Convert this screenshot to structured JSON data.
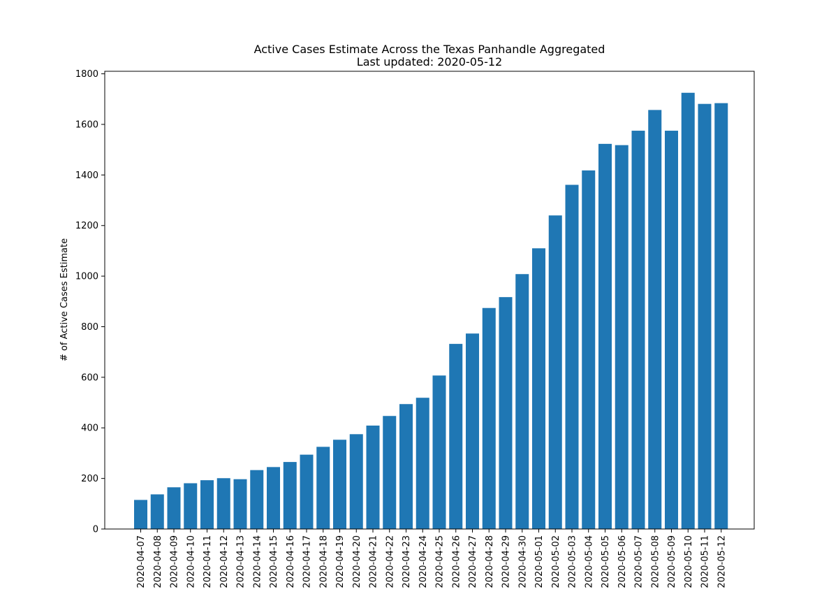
{
  "chart_data": {
    "type": "bar",
    "title": "Active Cases Estimate Across the Texas Panhandle Aggregated",
    "subtitle": "Last updated: 2020-05-12",
    "xlabel": "",
    "ylabel": "# of Active Cases Estimate",
    "ylim": [
      0,
      1810
    ],
    "yticks": [
      0,
      200,
      400,
      600,
      800,
      1000,
      1200,
      1400,
      1600,
      1800
    ],
    "grid": false,
    "bar_color": "#1f77b4",
    "categories": [
      "2020-04-07",
      "2020-04-08",
      "2020-04-09",
      "2020-04-10",
      "2020-04-11",
      "2020-04-12",
      "2020-04-13",
      "2020-04-14",
      "2020-04-15",
      "2020-04-16",
      "2020-04-17",
      "2020-04-18",
      "2020-04-19",
      "2020-04-20",
      "2020-04-21",
      "2020-04-22",
      "2020-04-23",
      "2020-04-24",
      "2020-04-25",
      "2020-04-26",
      "2020-04-27",
      "2020-04-28",
      "2020-04-29",
      "2020-04-30",
      "2020-05-01",
      "2020-05-02",
      "2020-05-03",
      "2020-05-04",
      "2020-05-05",
      "2020-05-06",
      "2020-05-07",
      "2020-05-08",
      "2020-05-09",
      "2020-05-10",
      "2020-05-11",
      "2020-05-12"
    ],
    "values": [
      115,
      137,
      165,
      181,
      193,
      201,
      197,
      233,
      245,
      265,
      294,
      325,
      353,
      375,
      409,
      447,
      494,
      519,
      607,
      732,
      773,
      874,
      917,
      1008,
      1110,
      1240,
      1361,
      1418,
      1523,
      1518,
      1575,
      1657,
      1575,
      1725,
      1681,
      1684
    ]
  }
}
